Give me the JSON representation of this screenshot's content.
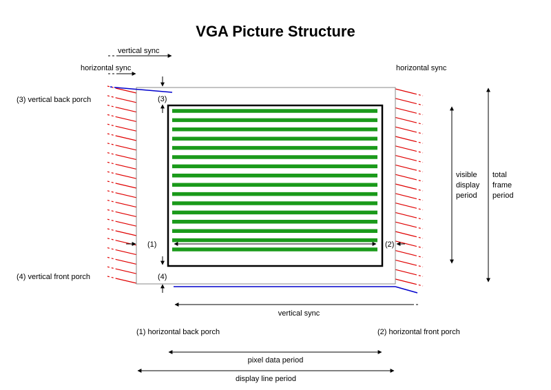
{
  "title": "VGA Picture Structure",
  "labels": {
    "vertical_sync_top": "vertical sync",
    "horizontal_sync_left": "horizontal sync",
    "horizontal_sync_right": "horizontal sync",
    "vertical_back_porch": "(3) vertical back porch",
    "vertical_front_porch": "(4) vertical front porch",
    "marker_1": "(1)",
    "marker_2": "(2)",
    "marker_3": "(3)",
    "marker_4": "(4)",
    "visible_display_period": [
      "visible",
      "display",
      "period"
    ],
    "total_frame_period": [
      "total",
      "frame",
      "period"
    ],
    "vertical_sync_bottom": "vertical sync",
    "horizontal_back_porch": "(1) horizontal back porch",
    "horizontal_front_porch": "(2) horizontal front porch",
    "pixel_data_period": "pixel data period",
    "display_line_period": "display line period"
  },
  "colors": {
    "pixel_line": "#1a9a1a",
    "sync_line": "#e00000",
    "blank_line": "#0000cc",
    "frame_border": "#888888",
    "display_border": "#000000"
  }
}
